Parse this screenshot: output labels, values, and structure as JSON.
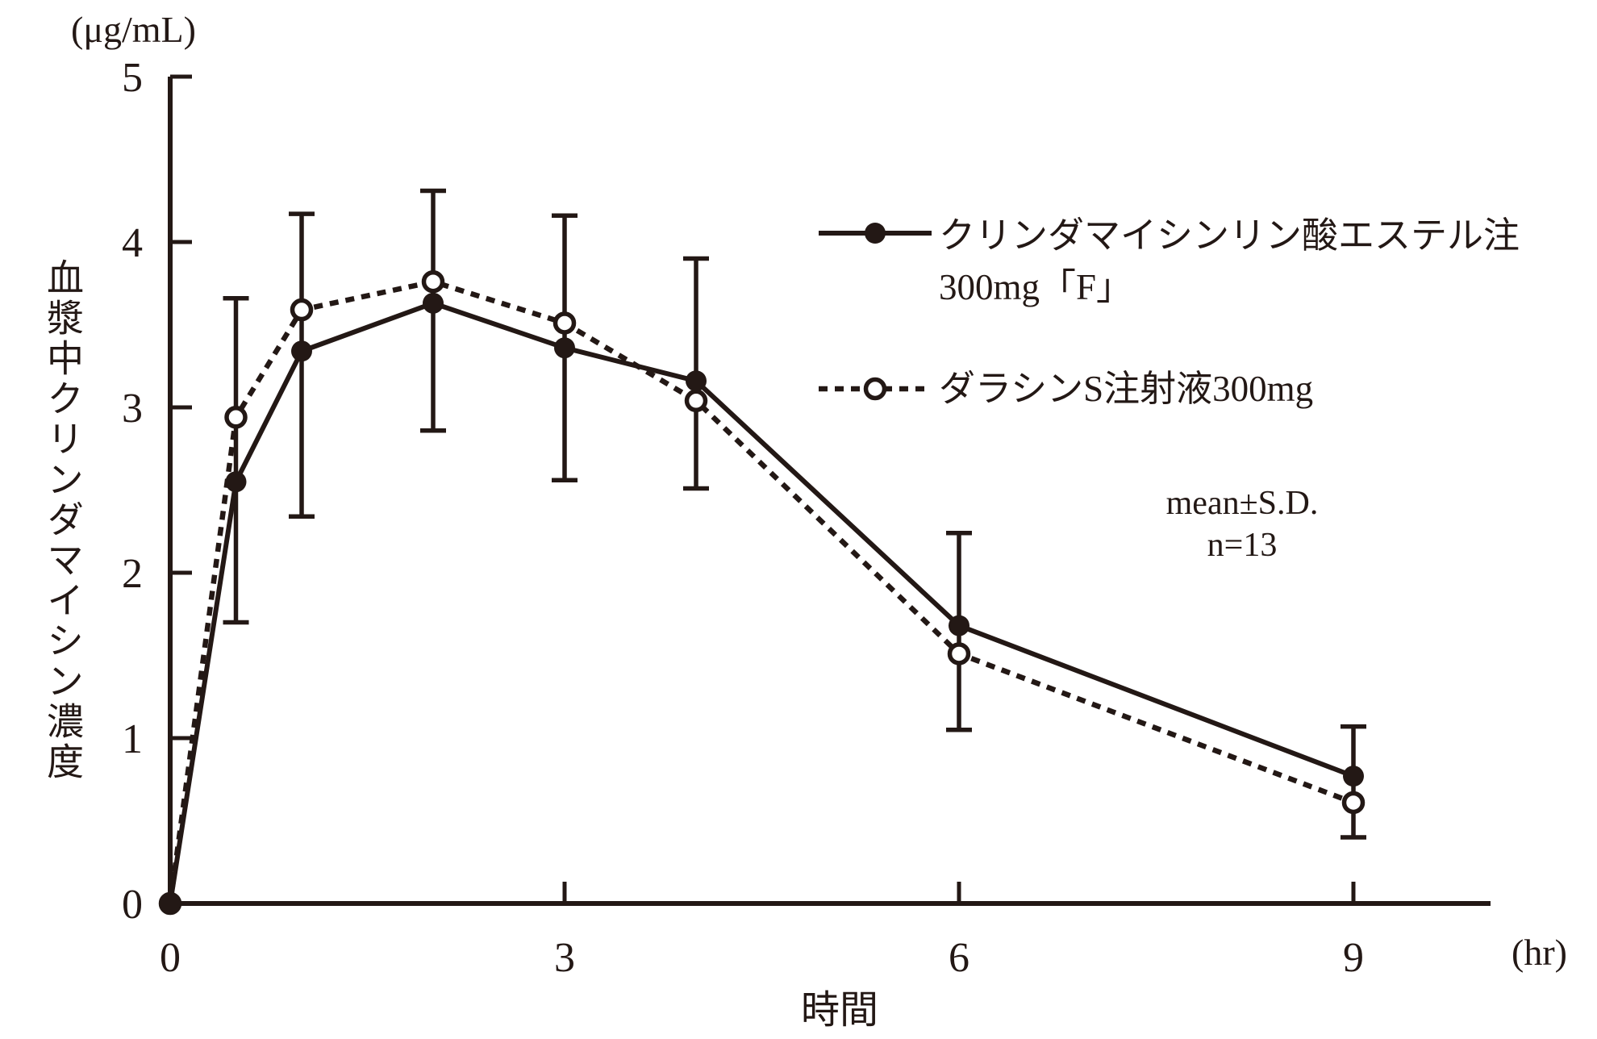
{
  "y_unit": "(μg/mL)",
  "y_axis_label": "血漿中クリンダマイシン濃度",
  "x_axis_label": "時間",
  "x_unit": "(hr)",
  "annotation": {
    "line1": "mean±S.D.",
    "line2": "n=13"
  },
  "legend": [
    {
      "label_line1": "クリンダマイシンリン酸エステル注",
      "label_line2": "300mg「F」",
      "marker": "filled-circle",
      "line": "solid"
    },
    {
      "label_line1": "ダラシンS注射液300mg",
      "marker": "open-circle",
      "line": "dotted"
    }
  ],
  "chart_data": {
    "type": "line",
    "title": "",
    "xlabel": "時間 (hr)",
    "ylabel": "血漿中クリンダマイシン濃度 (μg/mL)",
    "x": [
      0,
      0.5,
      1,
      2,
      3,
      4,
      6,
      9
    ],
    "series": [
      {
        "name": "クリンダマイシンリン酸エステル注300mg「F」",
        "marker": "filled-circle",
        "line": "solid",
        "values": [
          0,
          2.55,
          3.34,
          3.63,
          3.36,
          3.16,
          1.68,
          0.77
        ]
      },
      {
        "name": "ダラシンS注射液300mg",
        "marker": "open-circle",
        "line": "dotted",
        "values": [
          0,
          2.94,
          3.59,
          3.76,
          3.51,
          3.04,
          1.51,
          0.61
        ]
      }
    ],
    "error_bars": [
      {
        "x": 0.5,
        "low": 1.7,
        "high": 3.66
      },
      {
        "x": 1,
        "low": 2.34,
        "high": 4.17
      },
      {
        "x": 2,
        "low": 2.86,
        "high": 4.31
      },
      {
        "x": 3,
        "low": 2.56,
        "high": 4.16
      },
      {
        "x": 4,
        "low": 2.51,
        "high": 3.9
      },
      {
        "x": 6,
        "low": 1.05,
        "high": 2.24
      },
      {
        "x": 9,
        "low": 0.4,
        "high": 1.07
      }
    ],
    "x_ticks": [
      0,
      3,
      6,
      9
    ],
    "y_ticks": [
      0,
      1,
      2,
      3,
      4,
      5
    ],
    "xlim": [
      0,
      10
    ],
    "ylim": [
      0,
      5
    ],
    "grid": false,
    "legend_position": "upper right",
    "annotation": "mean±S.D. n=13",
    "color": "#231815"
  }
}
